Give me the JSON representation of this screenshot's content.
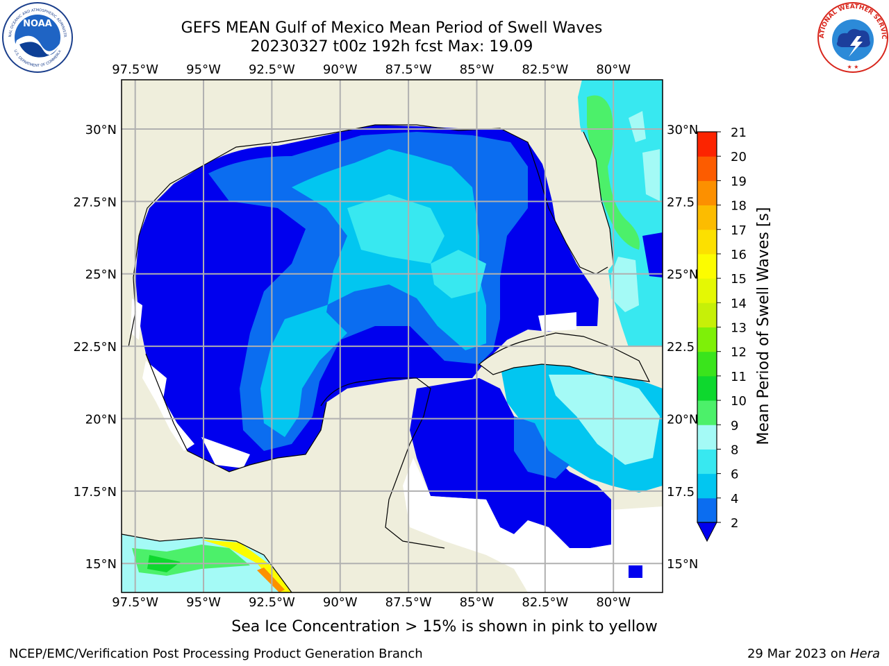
{
  "header": {
    "title_line1": "GEFS MEAN Gulf of Mexico Mean Period of Swell Waves",
    "title_line2": "20230327 t00z 192h fcst   Max: 19.09"
  },
  "logos": {
    "noaa_text": "NOAA",
    "noaa_ring_top": "NATIONAL OCEANIC AND ATMOSPHERIC ADMINISTRATION",
    "noaa_ring_bottom": "U.S. DEPARTMENT OF COMMERCE",
    "nws_ring_top": "NATIONAL WEATHER SERVICE"
  },
  "map": {
    "lon_labels": [
      "97.5°W",
      "95°W",
      "92.5°W",
      "90°W",
      "87.5°W",
      "85°W",
      "82.5°W",
      "80°W"
    ],
    "lon_values": [
      -97.5,
      -95,
      -92.5,
      -90,
      -87.5,
      -85,
      -82.5,
      -80
    ],
    "lat_labels_left": [
      "30°N",
      "27.5°N",
      "25°N",
      "22.5°N",
      "20°N",
      "17.5°N",
      "15°N"
    ],
    "lat_labels_right": [
      "30°N",
      "27.5",
      "25°N",
      "22.5",
      "20°N",
      "17.5",
      "15°N"
    ],
    "lat_values": [
      30,
      27.5,
      25,
      22.5,
      20,
      17.5,
      15
    ],
    "lon_range": [
      -98,
      -78.2
    ],
    "lat_range": [
      14,
      31.7
    ],
    "land_color": "#efeedc",
    "water_missing_color": "#ffffff",
    "grid": true
  },
  "colorbar": {
    "label": "Mean Period of Swell Waves [s]",
    "ticks": [
      "2",
      "4",
      "6",
      "8",
      "9",
      "10",
      "11",
      "12",
      "13",
      "14",
      "15",
      "16",
      "17",
      "18",
      "19",
      "20",
      "21"
    ],
    "colors": [
      "#0b6df0",
      "#02c6f0",
      "#38e8f0",
      "#a4faf6",
      "#4cf06a",
      "#0ed82e",
      "#3ae41c",
      "#7ef008",
      "#c6f008",
      "#e4f804",
      "#fcfc00",
      "#fce000",
      "#fcbc00",
      "#fc9000",
      "#fc5c00",
      "#fc2400"
    ],
    "extend_color": "#0000ee"
  },
  "footnote": "Sea Ice Concentration > 15% is shown in pink to yellow",
  "credit_left": "NCEP/EMC/Verification Post Processing Product Generation Branch",
  "credit_right_prefix": "29 Mar 2023 on ",
  "credit_right_host": "Hera"
}
